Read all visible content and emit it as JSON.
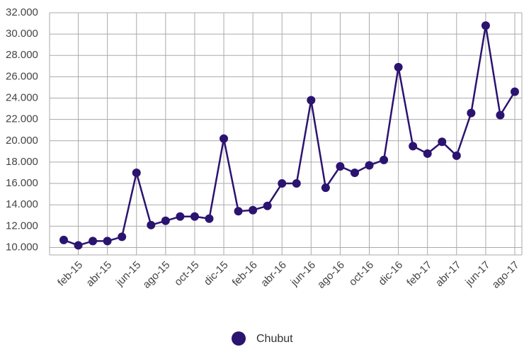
{
  "chart_data": {
    "type": "line",
    "categories": [
      null,
      "feb-15",
      null,
      "abr-15",
      null,
      "jun-15",
      null,
      "ago-15",
      null,
      "oct-15",
      null,
      "dic-15",
      null,
      "feb-16",
      null,
      "abr-16",
      null,
      "jun-16",
      null,
      "ago-16",
      null,
      "oct-16",
      null,
      "dic-16",
      null,
      "feb-17",
      null,
      "abr-17",
      null,
      "jun-17",
      null,
      "ago-17"
    ],
    "series": [
      {
        "name": "Chubut",
        "color": "#2b1370",
        "values": [
          10700,
          10200,
          10600,
          10600,
          11000,
          17000,
          12100,
          12500,
          12900,
          12900,
          12700,
          20200,
          13400,
          13500,
          13900,
          16000,
          16000,
          23800,
          15600,
          17600,
          17000,
          17700,
          18200,
          26900,
          19500,
          18800,
          19900,
          18600,
          22600,
          30800,
          22400,
          24600
        ]
      }
    ],
    "ylim": [
      9300,
      32000
    ],
    "yticks": [
      {
        "value": 10000,
        "label": "10.000"
      },
      {
        "value": 12000,
        "label": "12.000"
      },
      {
        "value": 14000,
        "label": "14.000"
      },
      {
        "value": 16000,
        "label": "16.000"
      },
      {
        "value": 18000,
        "label": "18.000"
      },
      {
        "value": 20000,
        "label": "20.000"
      },
      {
        "value": 22000,
        "label": "22.000"
      },
      {
        "value": 24000,
        "label": "24.000"
      },
      {
        "value": 26000,
        "label": "26.000"
      },
      {
        "value": 28000,
        "label": "28.000"
      },
      {
        "value": 30000,
        "label": "30.000"
      },
      {
        "value": 32000,
        "label": "32.000"
      }
    ],
    "grid": true,
    "legend": "bottom"
  }
}
